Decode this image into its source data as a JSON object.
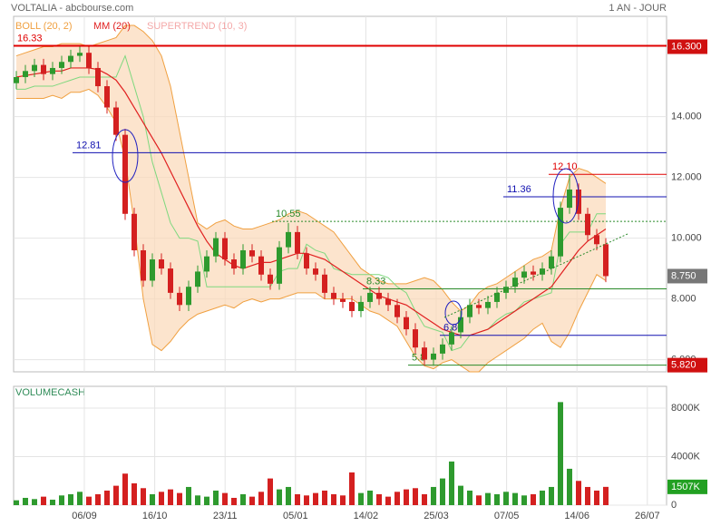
{
  "chart_data": {
    "type": "candlestick",
    "title": "VOLTALIA - abcbourse.com",
    "period": "1 AN - JOUR",
    "indicators": [
      {
        "name": "BOLL (20, 2)",
        "color": "#f0a040"
      },
      {
        "name": "MM (20)",
        "color": "#e02020"
      },
      {
        "name": "SUPERTREND (10, 3)",
        "color": "#f4a8a8"
      }
    ],
    "xticks": [
      "06/09",
      "16/10",
      "23/11",
      "05/01",
      "14/02",
      "25/03",
      "07/05",
      "14/06",
      "26/07"
    ],
    "open": [
      15.1,
      15.3,
      15.5,
      15.7,
      15.4,
      15.6,
      15.8,
      16.0,
      16.1,
      15.6,
      15.0,
      14.3,
      13.4,
      10.8,
      9.6,
      8.6,
      9.3,
      9.0,
      8.2,
      7.8,
      8.4,
      8.9,
      9.4,
      10.0,
      9.3,
      9.0,
      9.6,
      9.4,
      8.8,
      8.5,
      9.7,
      10.2,
      9.5,
      9.0,
      8.8,
      8.2,
      8.0,
      7.9,
      7.6,
      7.9,
      8.2,
      8.0,
      7.8,
      7.4,
      7.0,
      6.4,
      6.0,
      6.2,
      6.5,
      6.9,
      7.4,
      7.8,
      7.7,
      7.9,
      8.2,
      8.4,
      8.7,
      8.9,
      8.8,
      9.0,
      9.4,
      11.0,
      11.6,
      10.8,
      10.1,
      9.8
    ],
    "high": [
      15.5,
      15.7,
      15.9,
      15.9,
      15.8,
      16.0,
      16.2,
      16.3,
      16.3,
      15.8,
      15.2,
      14.5,
      13.6,
      11.0,
      9.8,
      9.5,
      9.5,
      9.2,
      8.4,
      8.6,
      9.1,
      9.6,
      10.2,
      10.2,
      9.5,
      9.8,
      9.8,
      9.6,
      9.0,
      9.9,
      10.5,
      10.4,
      9.7,
      9.2,
      9.0,
      8.4,
      8.2,
      8.1,
      8.1,
      8.4,
      8.4,
      8.2,
      8.0,
      7.6,
      7.2,
      6.6,
      6.4,
      6.7,
      7.1,
      7.6,
      8.0,
      8.0,
      8.1,
      8.4,
      8.6,
      8.9,
      9.1,
      9.1,
      9.2,
      9.6,
      11.2,
      12.1,
      11.8,
      11.0,
      10.3,
      10.0
    ],
    "low": [
      14.9,
      15.1,
      15.3,
      15.2,
      15.2,
      15.4,
      15.6,
      15.8,
      15.4,
      14.8,
      14.1,
      13.2,
      10.6,
      9.4,
      8.4,
      8.4,
      8.8,
      8.0,
      7.6,
      7.6,
      8.2,
      8.7,
      9.2,
      9.1,
      8.8,
      8.8,
      9.2,
      8.6,
      8.3,
      8.3,
      9.5,
      9.3,
      8.8,
      8.6,
      8.0,
      7.8,
      7.7,
      7.4,
      7.4,
      7.7,
      7.8,
      7.6,
      7.2,
      6.8,
      6.2,
      5.8,
      5.8,
      6.0,
      6.3,
      6.7,
      7.2,
      7.5,
      7.5,
      7.7,
      8.0,
      8.2,
      8.5,
      8.6,
      8.6,
      8.8,
      9.2,
      10.8,
      10.6,
      9.9,
      9.6,
      8.55
    ],
    "close": [
      15.3,
      15.5,
      15.7,
      15.4,
      15.6,
      15.8,
      16.0,
      16.1,
      15.6,
      15.0,
      14.3,
      13.4,
      10.8,
      9.6,
      8.6,
      9.3,
      9.0,
      8.2,
      7.8,
      8.4,
      8.9,
      9.4,
      10.0,
      9.3,
      9.0,
      9.6,
      9.4,
      8.8,
      8.5,
      9.7,
      10.2,
      9.5,
      9.0,
      8.8,
      8.2,
      8.0,
      7.9,
      7.6,
      7.9,
      8.2,
      8.0,
      7.8,
      7.4,
      7.0,
      6.4,
      6.0,
      6.2,
      6.5,
      6.9,
      7.4,
      7.8,
      7.7,
      7.9,
      8.2,
      8.4,
      8.7,
      8.9,
      8.8,
      9.0,
      9.4,
      11.0,
      11.6,
      10.8,
      10.1,
      9.8,
      8.75
    ],
    "ma": [
      15.3,
      15.35,
      15.4,
      15.45,
      15.5,
      15.5,
      15.6,
      15.6,
      15.6,
      15.55,
      15.4,
      15.2,
      14.8,
      14.3,
      13.8,
      13.3,
      12.8,
      12.2,
      11.6,
      11.0,
      10.4,
      9.9,
      9.5,
      9.3,
      9.1,
      9.0,
      9.1,
      9.2,
      9.2,
      9.3,
      9.4,
      9.5,
      9.5,
      9.4,
      9.3,
      9.1,
      8.9,
      8.7,
      8.5,
      8.3,
      8.1,
      8.0,
      7.9,
      7.8,
      7.6,
      7.4,
      7.2,
      7.0,
      6.9,
      6.8,
      6.8,
      6.9,
      7.0,
      7.2,
      7.4,
      7.6,
      7.8,
      8.0,
      8.2,
      8.4,
      8.8,
      9.2,
      9.6,
      9.9,
      10.1,
      10.3
    ],
    "boll_upper": [
      16.0,
      16.1,
      16.2,
      16.3,
      16.3,
      16.4,
      16.4,
      16.4,
      16.3,
      16.4,
      16.5,
      16.6,
      17.0,
      17.0,
      16.8,
      16.5,
      16.0,
      15.0,
      13.5,
      12.0,
      10.5,
      10.3,
      10.5,
      10.6,
      10.4,
      10.3,
      10.3,
      10.4,
      10.5,
      10.6,
      10.8,
      10.9,
      10.8,
      10.6,
      10.4,
      10.2,
      9.8,
      9.4,
      9.0,
      8.8,
      8.6,
      8.5,
      8.5,
      8.5,
      8.6,
      8.7,
      8.6,
      8.3,
      7.9,
      7.6,
      7.8,
      8.2,
      8.4,
      8.5,
      8.7,
      8.9,
      9.1,
      9.3,
      9.4,
      9.6,
      11.0,
      12.0,
      12.3,
      12.2,
      12.0,
      11.8
    ],
    "boll_lower": [
      14.6,
      14.6,
      14.6,
      14.6,
      14.7,
      14.6,
      14.8,
      14.8,
      14.9,
      14.7,
      14.3,
      13.8,
      12.6,
      10.5,
      8.0,
      6.5,
      6.3,
      6.6,
      7.0,
      7.3,
      7.5,
      7.6,
      7.7,
      7.8,
      7.7,
      7.9,
      8.0,
      7.9,
      8.0,
      8.0,
      8.1,
      8.2,
      8.2,
      8.2,
      8.0,
      8.0,
      8.0,
      8.0,
      7.8,
      7.6,
      7.5,
      7.3,
      7.1,
      6.6,
      6.1,
      5.8,
      5.7,
      5.9,
      6.0,
      5.8,
      5.6,
      5.6,
      5.9,
      6.1,
      6.3,
      6.5,
      6.7,
      7.0,
      7.2,
      6.6,
      6.4,
      6.9,
      7.6,
      8.2,
      8.8,
      8.6
    ],
    "supertrend": [
      14.9,
      14.9,
      15.0,
      15.0,
      15.0,
      15.1,
      15.2,
      15.3,
      15.3,
      15.3,
      15.3,
      15.3,
      16.0,
      15.0,
      14.0,
      12.5,
      11.5,
      10.5,
      10.0,
      10.0,
      9.9,
      8.4,
      8.4,
      8.4,
      8.4,
      8.4,
      8.4,
      8.4,
      8.4,
      8.9,
      9.0,
      9.0,
      9.8,
      9.6,
      9.5,
      9.0,
      8.9,
      8.8,
      8.8,
      8.8,
      8.8,
      8.7,
      8.4,
      8.2,
      7.6,
      7.1,
      7.0,
      6.9,
      6.3,
      6.4,
      6.8,
      6.9,
      7.0,
      7.3,
      7.5,
      7.6,
      7.9,
      8.0,
      8.1,
      8.2,
      9.8,
      10.2,
      10.2,
      10.2,
      10.8,
      10.8
    ],
    "volume_title": "VOLUMECASH",
    "volume": [
      400,
      600,
      500,
      700,
      450,
      800,
      900,
      1100,
      700,
      900,
      1200,
      1600,
      2600,
      1800,
      1400,
      900,
      1100,
      1300,
      1000,
      1500,
      800,
      700,
      1200,
      1000,
      600,
      900,
      700,
      1100,
      2200,
      1300,
      1500,
      900,
      800,
      1000,
      1200,
      900,
      800,
      2700,
      1000,
      1200,
      900,
      700,
      1100,
      1300,
      1400,
      900,
      1500,
      2200,
      3600,
      1600,
      1200,
      800,
      1000,
      900,
      1100,
      1000,
      800,
      900,
      1200,
      1500,
      8500,
      3000,
      2000,
      1500,
      1200,
      1507
    ],
    "ylim": [
      5.6,
      17.3
    ],
    "yticks": [
      {
        "value": 14,
        "label": "14.000"
      },
      {
        "value": 12,
        "label": "12.000"
      },
      {
        "value": 10,
        "label": "10.000"
      },
      {
        "value": 8,
        "label": "8.000"
      },
      {
        "value": 6,
        "label": "6.000"
      }
    ],
    "vlim": [
      0,
      9800
    ],
    "vticks": [
      {
        "value": 8000,
        "label": "8000K"
      },
      {
        "value": 4000,
        "label": "4000K"
      },
      0
    ],
    "levels": [
      {
        "value": 16.33,
        "label": "16.33",
        "color": "#e00000"
      },
      {
        "value": 12.81,
        "label": "12.81",
        "color": "#1010b0"
      },
      {
        "value": 12.1,
        "label": "12.10",
        "color": "#e00000"
      },
      {
        "value": 11.36,
        "label": "11.36",
        "color": "#1010b0"
      },
      {
        "value": 10.55,
        "label": "10.55",
        "color": "#2a8a2a"
      },
      {
        "value": 8.33,
        "label": "8.33",
        "color": "#2a8a2a"
      },
      {
        "value": 6.8,
        "label": "6.80",
        "color": "#1010b0"
      },
      {
        "value": 5.82,
        "label": "5.8",
        "color": "#2a8a2a"
      }
    ],
    "price_boxes": [
      {
        "value": 16.3,
        "label": "16.300",
        "color": "#d01010"
      },
      {
        "value": 8.75,
        "label": "8.750",
        "color": "#777777"
      },
      {
        "value": 5.82,
        "label": "5.820",
        "color": "#d01010"
      }
    ],
    "volume_box": {
      "value": 1507,
      "label": "1507K",
      "color": "#22a022"
    },
    "up_color": "#2e9a2e",
    "down_color": "#d42020",
    "grid": true
  }
}
